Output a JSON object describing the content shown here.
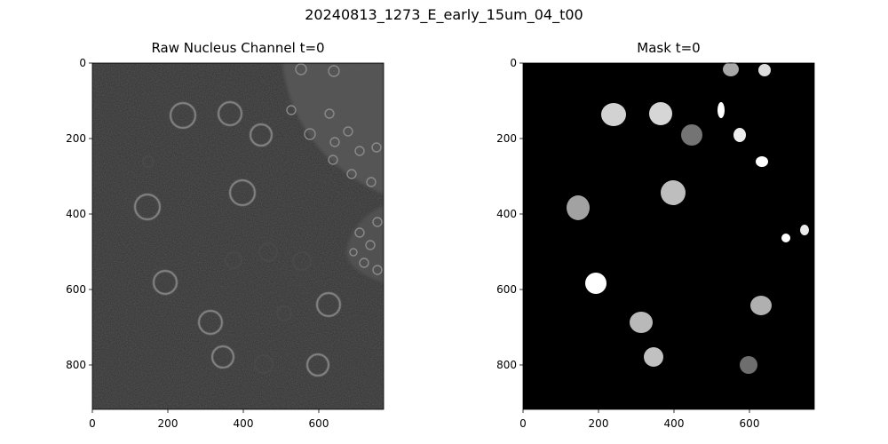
{
  "figure": {
    "suptitle": "20240813_1273_E_early_15um_04_t00"
  },
  "panels": [
    {
      "title": "Raw Nucleus Channel t=0",
      "xticks": [
        "0",
        "200",
        "400",
        "600"
      ],
      "yticks": [
        "0",
        "200",
        "400",
        "600",
        "800"
      ],
      "image_kind": "grayscale fluorescence image with ring-shaped nuclei and a bright tissue region at top-right and right edge"
    },
    {
      "title": "Mask t=0",
      "xticks": [
        "0",
        "200",
        "400",
        "600"
      ],
      "yticks": [
        "0",
        "200",
        "400",
        "600",
        "800"
      ],
      "image_kind": "segmentation mask with gray/white filled blobs on black background"
    }
  ],
  "colors": {
    "background": "#ffffff",
    "raw_background": "#303030",
    "mask_background": "#000000"
  }
}
